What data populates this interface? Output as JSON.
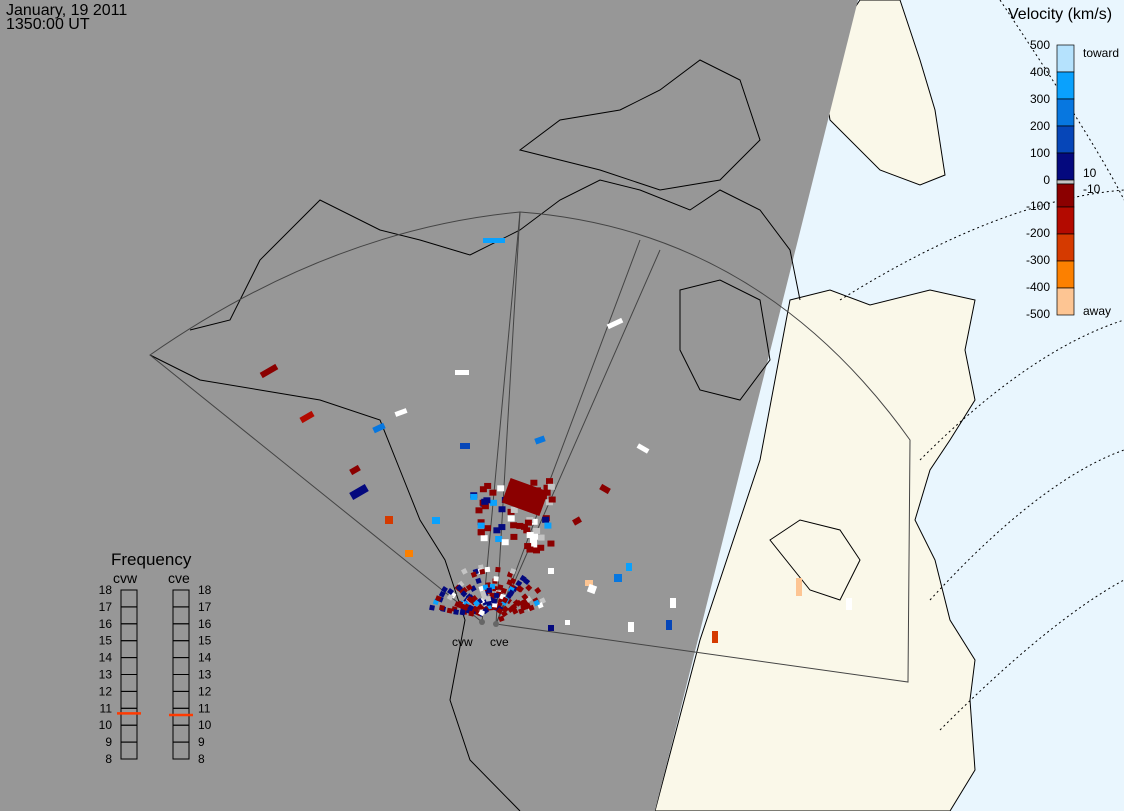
{
  "header": {
    "date": "January, 19 2011",
    "time": "1350:00 UT"
  },
  "colors": {
    "night": "#979797",
    "day_land": "#faf8e9",
    "ocean_day": "#e9f6fe",
    "frequency_marker": "#ff3a00"
  },
  "velocity_scale": {
    "title": "Velocity (km/s)",
    "ticks": [
      "500",
      "400",
      "300",
      "200",
      "100",
      "0",
      "-100",
      "-200",
      "-300",
      "-400",
      "-500"
    ],
    "toward_label": "toward",
    "away_label": "away",
    "threshold_pos": "10",
    "threshold_neg": "-10",
    "colors": [
      "#b5e2fd",
      "#0aa1fd",
      "#0777e0",
      "#0646b8",
      "#04097e",
      "#c4c4c4",
      "#8b0000",
      "#b30a00",
      "#d53a00",
      "#fc8000",
      "#fdc593"
    ]
  },
  "frequency": {
    "title": "Frequency",
    "radars": [
      {
        "name": "cvw",
        "value_mhz": 10.7
      },
      {
        "name": "cve",
        "value_mhz": 10.6
      }
    ],
    "ticks": [
      "18",
      "17",
      "16",
      "15",
      "14",
      "13",
      "12",
      "11",
      "10",
      "9",
      "8"
    ],
    "range": [
      8,
      18
    ]
  },
  "radar_sites": [
    "cvw",
    "cve"
  ]
}
